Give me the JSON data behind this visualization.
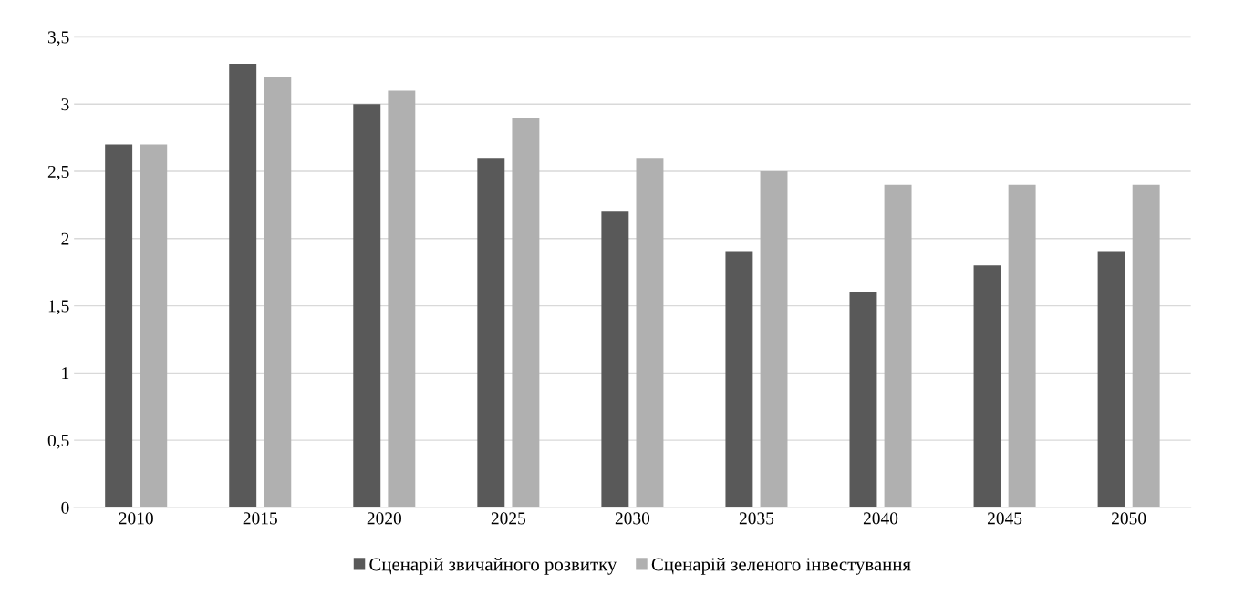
{
  "chart_data": {
    "type": "bar",
    "categories": [
      "2010",
      "2015",
      "2020",
      "2025",
      "2030",
      "2035",
      "2040",
      "2045",
      "2050"
    ],
    "series": [
      {
        "name": "Сценарій звичайного розвитку",
        "color": "#595959",
        "values": [
          2.7,
          3.3,
          3.0,
          2.6,
          2.2,
          1.9,
          1.6,
          1.8,
          1.9
        ]
      },
      {
        "name": "Сценарій зеленого інвестування",
        "color": "#b0b0b0",
        "values": [
          2.7,
          3.2,
          3.1,
          2.9,
          2.6,
          2.5,
          2.4,
          2.4,
          2.4
        ]
      }
    ],
    "ylim": [
      0,
      3.5
    ],
    "yticks": [
      0,
      {
        "value": 0.5,
        "label": "0,5"
      },
      1,
      {
        "value": 1.5,
        "label": "1,5"
      },
      2,
      {
        "value": 2.5,
        "label": "2,5"
      },
      3,
      {
        "value": 3.5,
        "label": "3,5"
      }
    ],
    "grid": "y",
    "legend": "bottom"
  }
}
